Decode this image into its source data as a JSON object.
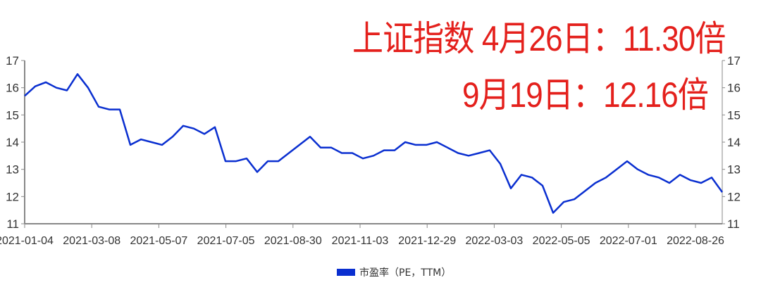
{
  "annotation": {
    "line1": "上证指数  4月26日：11.30倍",
    "line2": "9月19日：12.16倍",
    "color": "#e4201c"
  },
  "chart_data": {
    "type": "line",
    "title": "",
    "xlabel": "",
    "ylabel": "",
    "ylim": [
      11,
      17
    ],
    "yticks": [
      "11",
      "12",
      "13",
      "14",
      "15",
      "16",
      "17"
    ],
    "xticks": [
      "2021-01-04",
      "2021-03-08",
      "2021-05-07",
      "2021-07-05",
      "2021-08-30",
      "2021-11-03",
      "2021-12-29",
      "2022-03-03",
      "2022-05-05",
      "2022-07-01",
      "2022-08-26"
    ],
    "x_range": [
      "2021-01-04",
      "2022-09-19"
    ],
    "grid": false,
    "legend": "bottom",
    "series": [
      {
        "name": "市盈率（PE，TTM）",
        "color": "#0a2fd0",
        "values": [
          15.7,
          16.05,
          16.2,
          16.0,
          15.9,
          16.5,
          16.0,
          15.3,
          15.2,
          15.2,
          13.9,
          14.1,
          14.0,
          13.9,
          14.2,
          14.6,
          14.5,
          14.3,
          14.55,
          13.3,
          13.3,
          13.4,
          12.9,
          13.3,
          13.3,
          13.6,
          13.9,
          14.2,
          13.8,
          13.8,
          13.6,
          13.6,
          13.4,
          13.5,
          13.7,
          13.7,
          14.0,
          13.9,
          13.9,
          14.0,
          13.8,
          13.6,
          13.5,
          13.6,
          13.7,
          13.2,
          12.3,
          12.8,
          12.7,
          12.4,
          11.4,
          11.8,
          11.9,
          12.2,
          12.5,
          12.7,
          13.0,
          13.3,
          13.0,
          12.8,
          12.7,
          12.5,
          12.8,
          12.6,
          12.5,
          12.7,
          12.16
        ]
      }
    ]
  }
}
